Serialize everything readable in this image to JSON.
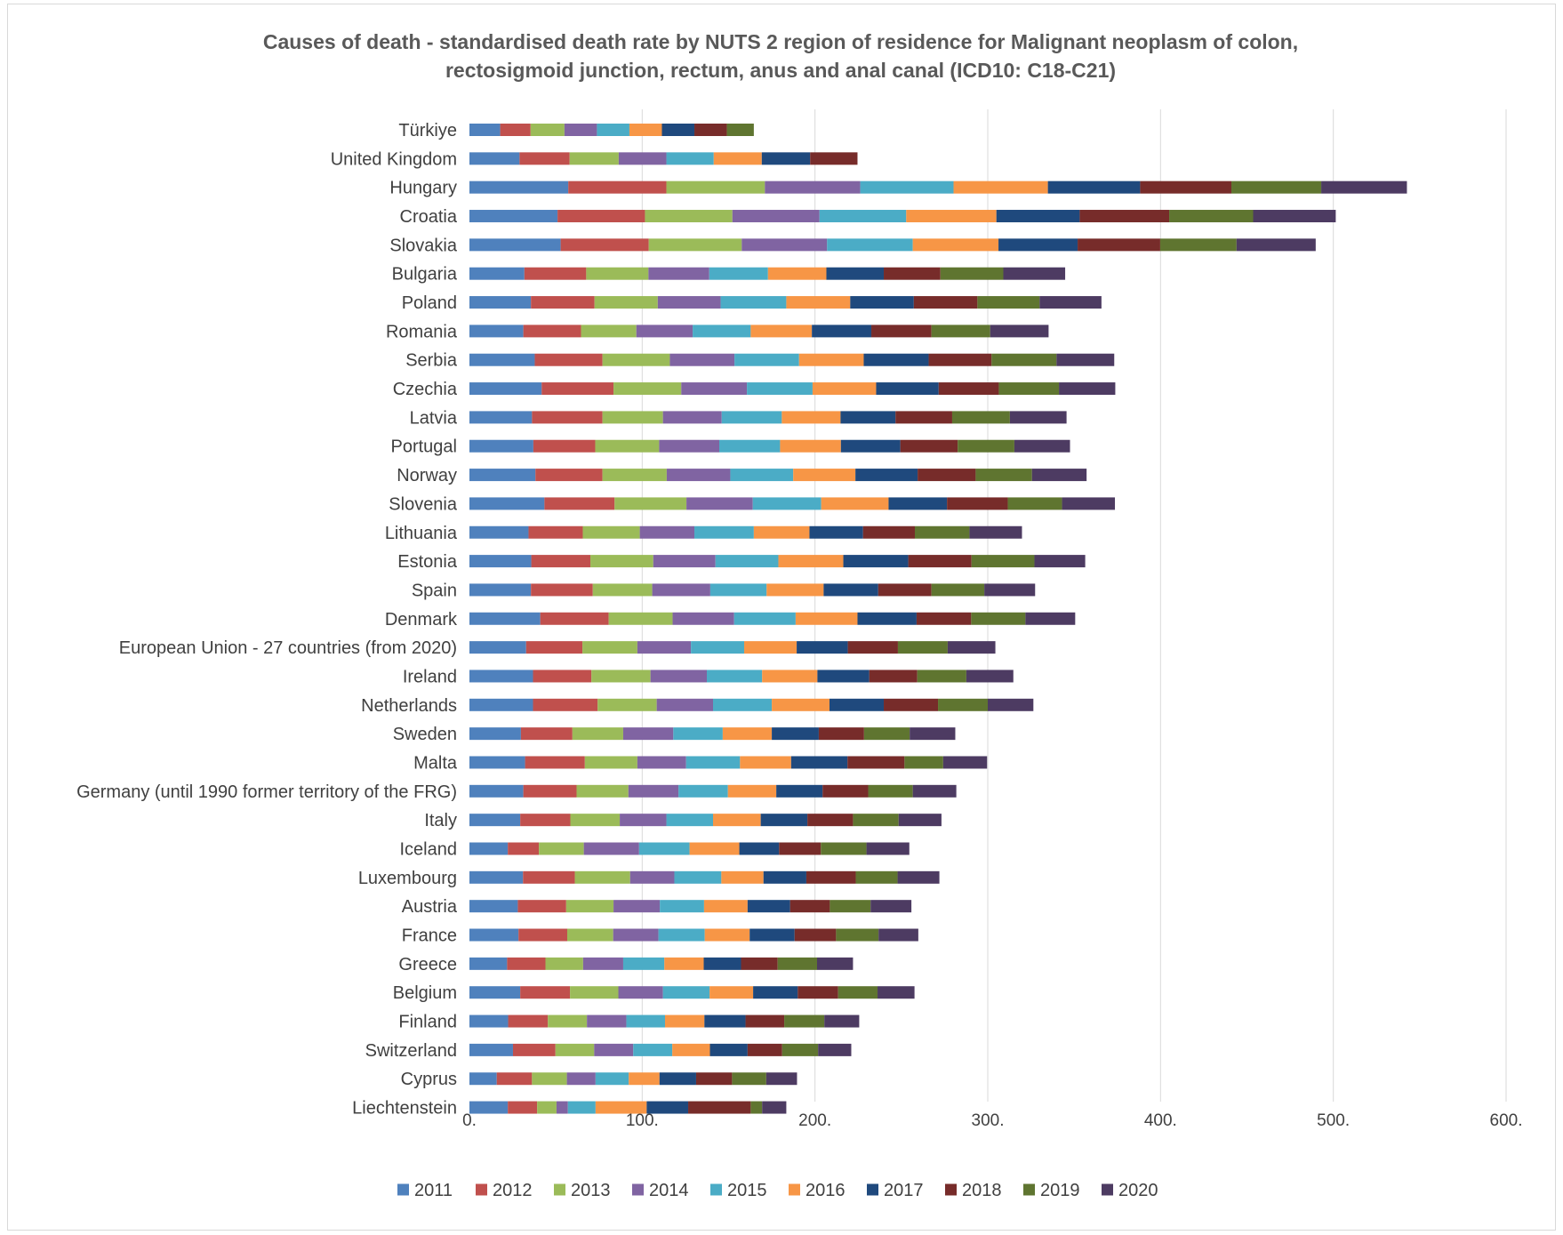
{
  "chart_data": {
    "type": "bar",
    "orientation": "horizontal",
    "stacked": true,
    "title_lines": [
      "Causes of death - standardised death rate by NUTS 2 region of residence for Malignant neoplasm of colon,",
      "rectosigmoid junction, rectum, anus and anal canal (ICD10: C18-C21)"
    ],
    "xlim": [
      0,
      600
    ],
    "x_ticks": [
      0,
      100,
      200,
      300,
      400,
      500,
      600
    ],
    "x_tick_labels": [
      "0.",
      "100.",
      "200.",
      "300.",
      "400.",
      "500.",
      "600."
    ],
    "grid": "vertical",
    "legend_position": "bottom",
    "categories": [
      "Türkiye",
      "United Kingdom",
      "Hungary",
      "Croatia",
      "Slovakia",
      "Bulgaria",
      "Poland",
      "Romania",
      "Serbia",
      "Czechia",
      "Latvia",
      "Portugal",
      "Norway",
      "Slovenia",
      "Lithuania",
      "Estonia",
      "Spain",
      "Denmark",
      "European Union - 27 countries (from 2020)",
      "Ireland",
      "Netherlands",
      "Sweden",
      "Malta",
      "Germany (until 1990 former territory of the FRG)",
      "Italy",
      "Iceland",
      "Luxembourg",
      "Austria",
      "France",
      "Greece",
      "Belgium",
      "Finland",
      "Switzerland",
      "Cyprus",
      "Liechtenstein"
    ],
    "series": [
      {
        "name": "2011",
        "color": "#4f81bd",
        "values": [
          17.8,
          29.0,
          57.2,
          51.0,
          52.8,
          31.8,
          35.6,
          31.2,
          37.8,
          41.8,
          36.2,
          37.0,
          38.2,
          43.4,
          34.2,
          35.8,
          35.6,
          41.0,
          32.8,
          36.8,
          36.8,
          29.8,
          32.2,
          31.2,
          29.4,
          22.2,
          31.0,
          28.0,
          28.4,
          21.8,
          29.4,
          22.4,
          25.2,
          15.8,
          22.2
        ]
      },
      {
        "name": "2012",
        "color": "#c0504d",
        "values": [
          17.6,
          29.0,
          56.8,
          50.6,
          51.0,
          35.8,
          36.8,
          33.4,
          39.2,
          41.6,
          40.8,
          35.8,
          38.8,
          40.6,
          31.4,
          34.2,
          35.8,
          39.6,
          32.6,
          33.8,
          37.4,
          29.8,
          34.6,
          30.8,
          29.0,
          18.0,
          30.0,
          28.0,
          28.2,
          22.2,
          28.8,
          23.0,
          24.6,
          20.4,
          17.0
        ]
      },
      {
        "name": "2013",
        "color": "#9bbb59",
        "values": [
          19.6,
          28.4,
          57.0,
          50.6,
          53.8,
          36.0,
          36.6,
          32.0,
          39.0,
          39.2,
          35.0,
          37.0,
          37.2,
          41.6,
          33.0,
          36.4,
          34.4,
          37.0,
          31.8,
          34.2,
          34.2,
          29.4,
          30.4,
          30.0,
          28.6,
          26.0,
          32.0,
          27.4,
          26.6,
          21.8,
          28.0,
          22.6,
          22.4,
          20.2,
          11.2
        ]
      },
      {
        "name": "2014",
        "color": "#8064a2",
        "values": [
          18.8,
          27.6,
          55.2,
          50.4,
          49.4,
          35.2,
          36.4,
          32.6,
          37.4,
          38.0,
          34.0,
          34.8,
          36.8,
          38.4,
          31.6,
          36.0,
          33.6,
          35.6,
          31.0,
          32.6,
          32.6,
          29.0,
          28.2,
          29.0,
          27.0,
          32.0,
          25.6,
          26.8,
          26.2,
          23.2,
          25.8,
          22.8,
          22.6,
          16.6,
          6.6
        ]
      },
      {
        "name": "2015",
        "color": "#4bacc6",
        "values": [
          18.8,
          27.4,
          54.0,
          50.2,
          49.6,
          34.0,
          38.0,
          33.6,
          37.4,
          38.0,
          34.8,
          35.2,
          36.4,
          39.6,
          34.4,
          36.4,
          32.6,
          35.6,
          30.8,
          32.0,
          34.0,
          28.6,
          31.2,
          28.6,
          27.0,
          29.2,
          27.2,
          25.6,
          26.8,
          23.8,
          27.0,
          22.4,
          22.6,
          19.2,
          16.0
        ]
      },
      {
        "name": "2016",
        "color": "#f79646",
        "values": [
          18.8,
          27.8,
          54.6,
          52.2,
          49.6,
          33.8,
          37.0,
          35.4,
          37.4,
          36.8,
          34.0,
          35.2,
          36.0,
          39.0,
          32.2,
          37.6,
          33.0,
          35.8,
          30.4,
          32.0,
          33.4,
          28.4,
          29.6,
          28.0,
          27.6,
          28.8,
          24.4,
          25.2,
          26.0,
          22.8,
          25.2,
          22.8,
          21.8,
          17.8,
          29.6
        ]
      },
      {
        "name": "2017",
        "color": "#1f497d",
        "values": [
          18.8,
          28.0,
          53.4,
          48.2,
          45.8,
          33.2,
          36.8,
          34.4,
          37.6,
          36.2,
          31.8,
          34.4,
          36.0,
          33.8,
          31.0,
          37.6,
          31.6,
          34.2,
          29.6,
          30.0,
          31.4,
          27.2,
          32.6,
          26.8,
          27.0,
          23.0,
          24.8,
          24.6,
          26.0,
          21.6,
          25.8,
          23.8,
          21.8,
          21.2,
          24.0
        ]
      },
      {
        "name": "2018",
        "color": "#772c2a",
        "values": [
          18.8,
          27.4,
          52.8,
          51.8,
          47.8,
          32.8,
          36.8,
          34.8,
          36.4,
          34.8,
          32.8,
          33.2,
          33.6,
          35.2,
          30.0,
          36.6,
          30.8,
          31.6,
          29.0,
          27.8,
          31.4,
          26.2,
          33.0,
          26.4,
          26.4,
          24.2,
          28.6,
          23.0,
          24.0,
          21.2,
          23.4,
          22.4,
          20.0,
          20.8,
          36.2
        ]
      },
      {
        "name": "2019",
        "color": "#5f7530",
        "values": [
          15.6,
          0,
          52.0,
          48.6,
          44.2,
          36.4,
          36.0,
          34.0,
          37.6,
          34.8,
          33.4,
          32.8,
          32.6,
          31.4,
          31.6,
          36.4,
          30.6,
          31.4,
          28.8,
          28.4,
          28.8,
          26.4,
          22.4,
          25.8,
          26.4,
          26.4,
          24.2,
          23.6,
          24.6,
          22.8,
          22.8,
          23.2,
          20.8,
          19.8,
          6.6
        ]
      },
      {
        "name": "2020",
        "color": "#4d3b62",
        "values": [
          0,
          0,
          49.6,
          47.8,
          45.8,
          35.8,
          35.8,
          33.8,
          33.4,
          32.6,
          32.8,
          32.2,
          31.6,
          30.6,
          30.4,
          29.4,
          29.4,
          28.8,
          27.6,
          27.2,
          26.4,
          26.4,
          25.4,
          25.2,
          24.8,
          24.8,
          24.2,
          23.6,
          23.0,
          20.8,
          21.4,
          20.2,
          19.2,
          17.8,
          14.0
        ]
      }
    ]
  }
}
